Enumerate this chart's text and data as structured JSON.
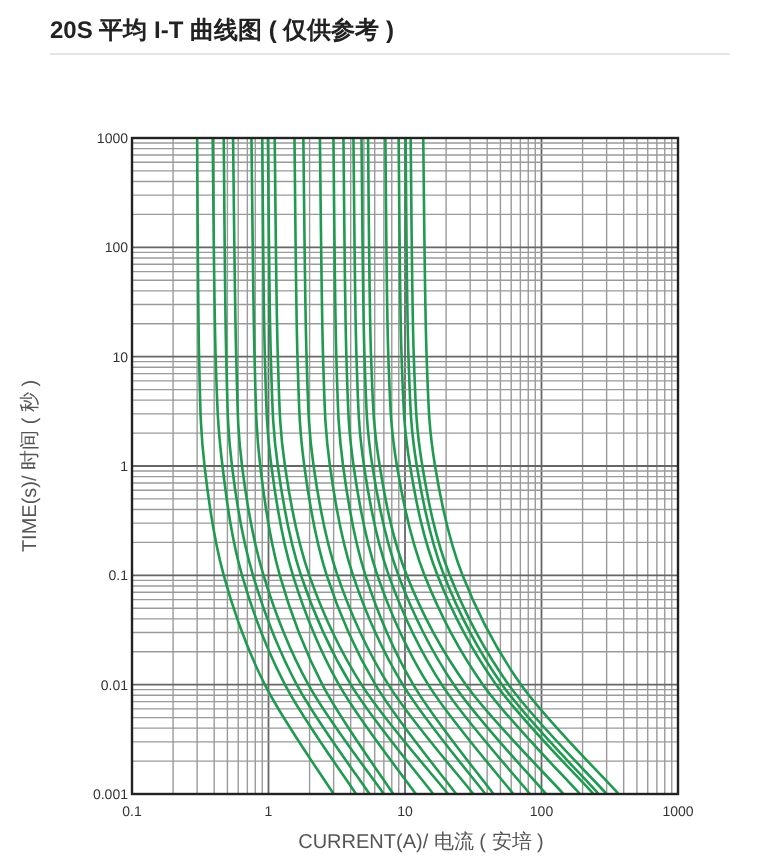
{
  "chart_data": {
    "type": "line",
    "title": "20S 平均 I-T 曲线图 ( 仅供参考 )",
    "xlabel": "CURRENT(A)/ 电流 ( 安培 )",
    "ylabel": "TIME(s)/ 时间 ( 秒 )",
    "log": "xy",
    "grid": true,
    "marker": "none",
    "line_style": "solid",
    "xlim": [
      0.1,
      1000
    ],
    "ylim": [
      0.001,
      1000
    ],
    "xticks": [
      0.1,
      1,
      10,
      100,
      1000
    ],
    "yticks": [
      0.001,
      0.01,
      0.1,
      1,
      10,
      100,
      1000
    ],
    "series": [
      {
        "color": "#1f9a50",
        "x": [
          0.3,
          0.31,
          0.34,
          0.47,
          0.94,
          3.0
        ],
        "values": [
          1000,
          10,
          1,
          0.1,
          0.01,
          0.001
        ]
      },
      {
        "color": "#1f9a50",
        "x": [
          0.39,
          0.41,
          0.46,
          0.64,
          1.32,
          4.38
        ],
        "values": [
          1000,
          10,
          1,
          0.1,
          0.01,
          0.001
        ]
      },
      {
        "color": "#1f9a50",
        "x": [
          0.47,
          0.49,
          0.54,
          0.77,
          1.61,
          5.5
        ],
        "values": [
          1000,
          10,
          1,
          0.1,
          0.01,
          0.001
        ]
      },
      {
        "color": "#1f9a50",
        "x": [
          0.55,
          0.58,
          0.64,
          0.92,
          1.96,
          7.0
        ],
        "values": [
          1000,
          10,
          1,
          0.1,
          0.01,
          0.001
        ]
      },
      {
        "color": "#1f9a50",
        "x": [
          0.75,
          0.79,
          0.87,
          1.21,
          2.48,
          8.2
        ],
        "values": [
          1000,
          10,
          1,
          0.1,
          0.01,
          0.001
        ]
      },
      {
        "color": "#1f9a50",
        "x": [
          0.9,
          0.94,
          1.05,
          1.51,
          3.28,
          12.0
        ],
        "values": [
          1000,
          10,
          1,
          0.1,
          0.01,
          0.001
        ]
      },
      {
        "color": "#1f9a50",
        "x": [
          0.99,
          1.04,
          1.17,
          1.73,
          4.01,
          16.1
        ],
        "values": [
          1000,
          10,
          1,
          0.1,
          0.01,
          0.001
        ]
      },
      {
        "color": "#1f9a50",
        "x": [
          1.11,
          1.17,
          1.32,
          1.99,
          4.8,
          20.7
        ],
        "values": [
          1000,
          10,
          1,
          0.1,
          0.01,
          0.001
        ]
      },
      {
        "color": "#1f9a50",
        "x": [
          1.55,
          1.63,
          1.83,
          2.67,
          6.07,
          23.7
        ],
        "values": [
          1000,
          10,
          1,
          0.1,
          0.01,
          0.001
        ]
      },
      {
        "color": "#1f9a50",
        "x": [
          1.8,
          1.9,
          2.14,
          3.2,
          7.55,
          31.7
        ],
        "values": [
          1000,
          10,
          1,
          0.1,
          0.01,
          0.001
        ]
      },
      {
        "color": "#1f9a50",
        "x": [
          2.38,
          2.51,
          2.82,
          4.16,
          9.63,
          38.8
        ],
        "values": [
          1000,
          10,
          1,
          0.1,
          0.01,
          0.001
        ]
      },
      {
        "color": "#1f9a50",
        "x": [
          2.99,
          3.14,
          3.52,
          5.13,
          11.5,
          44.5
        ],
        "values": [
          1000,
          10,
          1,
          0.1,
          0.01,
          0.001
        ]
      },
      {
        "color": "#1f9a50",
        "x": [
          3.54,
          3.72,
          4.2,
          6.28,
          14.8,
          62.2
        ],
        "values": [
          1000,
          10,
          1,
          0.1,
          0.01,
          0.001
        ]
      },
      {
        "color": "#1f9a50",
        "x": [
          4.19,
          4.41,
          5.01,
          7.6,
          18.6,
          82.4
        ],
        "values": [
          1000,
          10,
          1,
          0.1,
          0.01,
          0.001
        ]
      },
      {
        "color": "#1f9a50",
        "x": [
          4.8,
          5.05,
          5.77,
          8.95,
          22.8,
          108
        ],
        "values": [
          1000,
          10,
          1,
          0.1,
          0.01,
          0.001
        ]
      },
      {
        "color": "#1f9a50",
        "x": [
          5.36,
          5.64,
          6.53,
          10.3,
          27.9,
          145
        ],
        "values": [
          1000,
          10,
          1,
          0.1,
          0.01,
          0.001
        ]
      },
      {
        "color": "#1f9a50",
        "x": [
          7.18,
          7.55,
          8.73,
          13.9,
          37.2,
          191
        ],
        "values": [
          1000,
          10,
          1,
          0.1,
          0.01,
          0.001
        ]
      },
      {
        "color": "#1f9a50",
        "x": [
          8.98,
          9.44,
          10.9,
          17.3,
          46.5,
          240
        ],
        "values": [
          1000,
          10,
          1,
          0.1,
          0.01,
          0.001
        ]
      },
      {
        "color": "#1f9a50",
        "x": [
          10.1,
          10.6,
          12.2,
          19.3,
          51.4,
          262
        ],
        "values": [
          1000,
          10,
          1,
          0.1,
          0.01,
          0.001
        ]
      },
      {
        "color": "#1f9a50",
        "x": [
          11.0,
          11.6,
          13.4,
          21.3,
          57.4,
          300
        ],
        "values": [
          1000,
          10,
          1,
          0.1,
          0.01,
          0.001
        ]
      },
      {
        "color": "#1f9a50",
        "x": [
          13.6,
          14.4,
          16.6,
          26.4,
          70.8,
          367
        ],
        "values": [
          1000,
          10,
          1,
          0.1,
          0.01,
          0.001
        ]
      }
    ]
  }
}
